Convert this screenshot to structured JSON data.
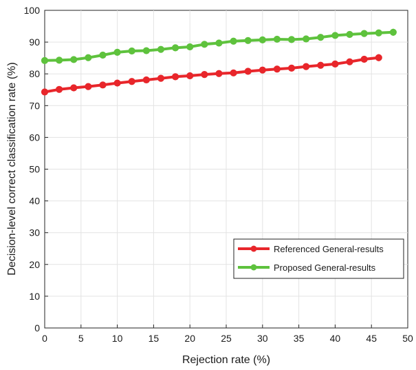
{
  "chart_data": {
    "type": "line",
    "xlabel": "Rejection rate (%)",
    "ylabel": "Decision-level correct classification rate (%)",
    "xlim": [
      0,
      50
    ],
    "ylim": [
      0,
      100
    ],
    "xticks": [
      0,
      5,
      10,
      15,
      20,
      25,
      30,
      35,
      40,
      45,
      50
    ],
    "yticks": [
      0,
      10,
      20,
      30,
      40,
      50,
      60,
      70,
      80,
      90,
      100
    ],
    "grid": true,
    "legend_position": "bottom-right",
    "series": [
      {
        "name": "Referenced General-results",
        "color": "#e8262b",
        "x": [
          0,
          2,
          4,
          6,
          8,
          10,
          12,
          14,
          16,
          18,
          20,
          22,
          24,
          26,
          28,
          30,
          32,
          34,
          36,
          38,
          40,
          42,
          44,
          46
        ],
        "y": [
          74.3,
          75.1,
          75.6,
          76.0,
          76.5,
          77.1,
          77.6,
          78.1,
          78.6,
          79.1,
          79.4,
          79.8,
          80.1,
          80.3,
          80.8,
          81.2,
          81.5,
          81.8,
          82.3,
          82.7,
          83.1,
          83.8,
          84.6,
          85.1
        ]
      },
      {
        "name": "Proposed General-results",
        "color": "#5ec23d",
        "x": [
          0,
          2,
          4,
          6,
          8,
          10,
          12,
          14,
          16,
          18,
          20,
          22,
          24,
          26,
          28,
          30,
          32,
          34,
          36,
          38,
          40,
          42,
          44,
          46,
          48
        ],
        "y": [
          84.2,
          84.3,
          84.5,
          85.1,
          85.9,
          86.8,
          87.2,
          87.3,
          87.7,
          88.2,
          88.5,
          89.3,
          89.7,
          90.3,
          90.5,
          90.7,
          90.9,
          90.8,
          91.0,
          91.5,
          92.1,
          92.4,
          92.7,
          92.9,
          93.1
        ]
      }
    ]
  }
}
